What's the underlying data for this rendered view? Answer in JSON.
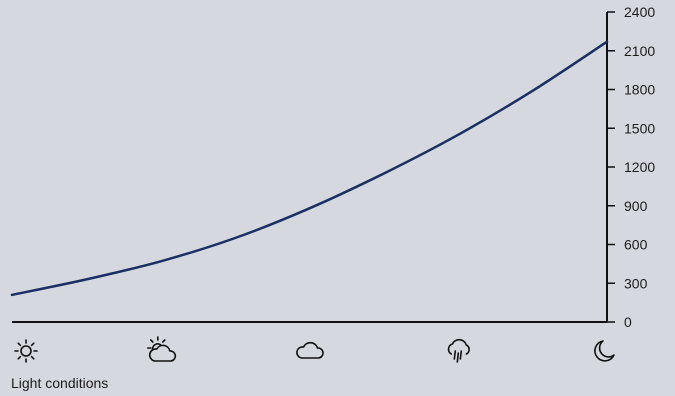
{
  "chart_data": {
    "type": "line",
    "xlabel": "Light conditions",
    "ylabel": "",
    "ylim": [
      0,
      2400
    ],
    "yticks": [
      0,
      300,
      600,
      900,
      1200,
      1500,
      1800,
      2100,
      2400
    ],
    "categories_icons": [
      "sun-icon",
      "partly-cloudy-icon",
      "cloud-icon",
      "rain-icon",
      "moon-icon"
    ],
    "series": [
      {
        "x": [
          0,
          0.125,
          0.25,
          0.375,
          0.5,
          0.625,
          0.75,
          0.875,
          1.0
        ],
        "values": [
          210,
          330,
          470,
          650,
          880,
          1150,
          1450,
          1790,
          2170
        ]
      }
    ],
    "grid": false,
    "colors": {
      "line": "#1a2f64",
      "axis": "#111111",
      "background": "#d5d8de"
    }
  }
}
